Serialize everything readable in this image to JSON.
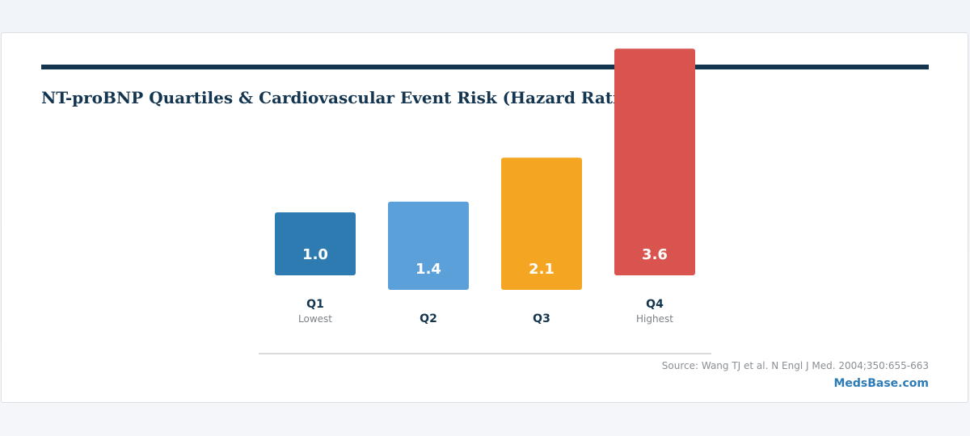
{
  "chart_data": {
    "type": "bar",
    "title": "NT-proBNP Quartiles & Cardiovascular Event Risk (Hazard Ratio)",
    "categories": [
      "Q1",
      "Q2",
      "Q3",
      "Q4"
    ],
    "sublabels": [
      "Lowest",
      "",
      "",
      "Highest"
    ],
    "values": [
      1.0,
      1.4,
      2.1,
      3.6
    ],
    "value_labels": [
      "1.0",
      "1.4",
      "2.1",
      "3.6"
    ],
    "colors": [
      "#2e7bb2",
      "#5ba0d8",
      "#f4a623",
      "#d9534f"
    ],
    "grid": false,
    "legend": "none"
  },
  "footer": {
    "source": "Source: Wang TJ et al. N Engl J Med. 2004;350:655-663",
    "brand": "MedsBase.com"
  }
}
